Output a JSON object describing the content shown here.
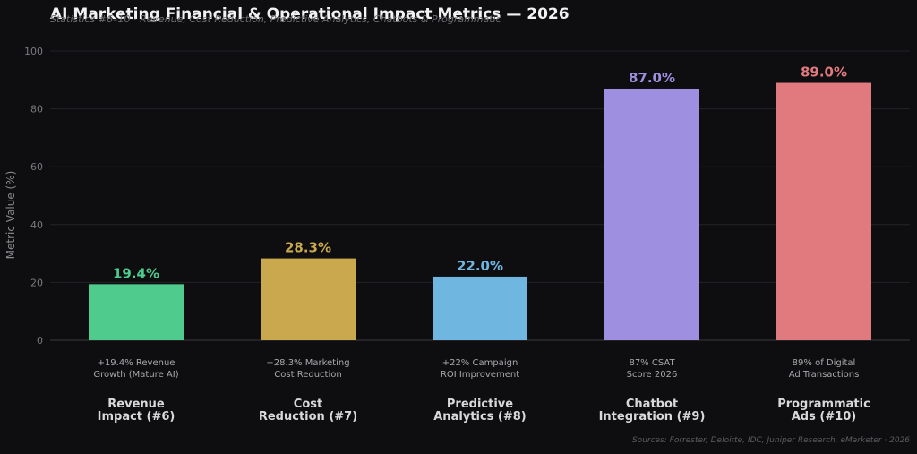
{
  "chart_data": {
    "type": "bar",
    "title": "AI Marketing Financial & Operational Impact Metrics — 2026",
    "subtitle": "Statistics #6–10 · Revenue, Cost Reduction, Predictive Analytics, Chatbots & Programmatic",
    "ylabel": "Metric Value (%)",
    "xlabel": "",
    "ylim": [
      0,
      100
    ],
    "yticks": [
      "0",
      "20",
      "40",
      "60",
      "80",
      "100"
    ],
    "grid": true,
    "categories": [
      "Revenue Impact (#6)",
      "Cost Reduction (#7)",
      "Predictive Analytics (#8)",
      "Chatbot Integration (#9)",
      "Programmatic Ads (#10)"
    ],
    "category_lines": [
      [
        "Revenue",
        "Impact (#6)"
      ],
      [
        "Cost",
        "Reduction (#7)"
      ],
      [
        "Predictive",
        "Analytics (#8)"
      ],
      [
        "Chatbot",
        "Integration (#9)"
      ],
      [
        "Programmatic",
        "Ads (#10)"
      ]
    ],
    "sub_labels": [
      [
        "+19.4% Revenue",
        "Growth (Mature AI)"
      ],
      [
        "−28.3% Marketing",
        "Cost Reduction"
      ],
      [
        "+22% Campaign",
        "ROI Improvement"
      ],
      [
        "87% CSAT",
        "Score 2026"
      ],
      [
        "89% of Digital",
        "Ad Transactions"
      ]
    ],
    "values": [
      19.4,
      28.3,
      22.0,
      87.0,
      89.0
    ],
    "value_labels": [
      "19.4%",
      "28.3%",
      "22.0%",
      "87.0%",
      "89.0%"
    ],
    "colors": [
      "#4ecb8d",
      "#c9a84e",
      "#6fb6e0",
      "#9f8fe0",
      "#e07a7e"
    ]
  },
  "footer": {
    "source": "Sources: Forrester, Deloitte, IDC, Juniper Research, eMarketer · 2026"
  }
}
